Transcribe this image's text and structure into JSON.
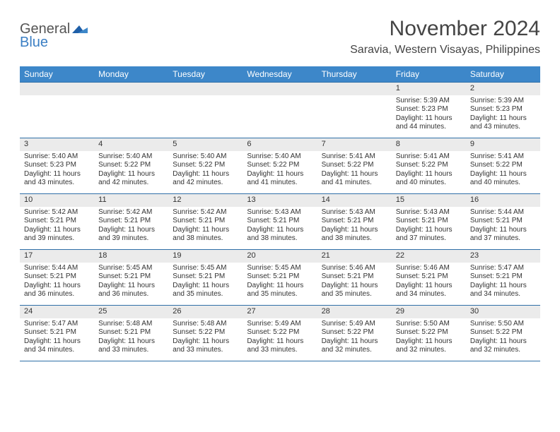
{
  "logo": {
    "word1": "General",
    "word2": "Blue"
  },
  "title": "November 2024",
  "location": "Saravia, Western Visayas, Philippines",
  "colors": {
    "header_bg": "#3d87c9",
    "row_divider": "#2f6fa8",
    "daynum_bg": "#ebebeb",
    "text": "#333333",
    "logo_gray": "#555555",
    "logo_blue": "#3b7fc4"
  },
  "fonts": {
    "title_size": 30,
    "location_size": 16,
    "dow_size": 12,
    "cell_size": 10
  },
  "days_of_week": [
    "Sunday",
    "Monday",
    "Tuesday",
    "Wednesday",
    "Thursday",
    "Friday",
    "Saturday"
  ],
  "weeks": [
    [
      {
        "n": "",
        "sunrise": "",
        "sunset": "",
        "daylight1": "",
        "daylight2": ""
      },
      {
        "n": "",
        "sunrise": "",
        "sunset": "",
        "daylight1": "",
        "daylight2": ""
      },
      {
        "n": "",
        "sunrise": "",
        "sunset": "",
        "daylight1": "",
        "daylight2": ""
      },
      {
        "n": "",
        "sunrise": "",
        "sunset": "",
        "daylight1": "",
        "daylight2": ""
      },
      {
        "n": "",
        "sunrise": "",
        "sunset": "",
        "daylight1": "",
        "daylight2": ""
      },
      {
        "n": "1",
        "sunrise": "Sunrise: 5:39 AM",
        "sunset": "Sunset: 5:23 PM",
        "daylight1": "Daylight: 11 hours",
        "daylight2": "and 44 minutes."
      },
      {
        "n": "2",
        "sunrise": "Sunrise: 5:39 AM",
        "sunset": "Sunset: 5:23 PM",
        "daylight1": "Daylight: 11 hours",
        "daylight2": "and 43 minutes."
      }
    ],
    [
      {
        "n": "3",
        "sunrise": "Sunrise: 5:40 AM",
        "sunset": "Sunset: 5:23 PM",
        "daylight1": "Daylight: 11 hours",
        "daylight2": "and 43 minutes."
      },
      {
        "n": "4",
        "sunrise": "Sunrise: 5:40 AM",
        "sunset": "Sunset: 5:22 PM",
        "daylight1": "Daylight: 11 hours",
        "daylight2": "and 42 minutes."
      },
      {
        "n": "5",
        "sunrise": "Sunrise: 5:40 AM",
        "sunset": "Sunset: 5:22 PM",
        "daylight1": "Daylight: 11 hours",
        "daylight2": "and 42 minutes."
      },
      {
        "n": "6",
        "sunrise": "Sunrise: 5:40 AM",
        "sunset": "Sunset: 5:22 PM",
        "daylight1": "Daylight: 11 hours",
        "daylight2": "and 41 minutes."
      },
      {
        "n": "7",
        "sunrise": "Sunrise: 5:41 AM",
        "sunset": "Sunset: 5:22 PM",
        "daylight1": "Daylight: 11 hours",
        "daylight2": "and 41 minutes."
      },
      {
        "n": "8",
        "sunrise": "Sunrise: 5:41 AM",
        "sunset": "Sunset: 5:22 PM",
        "daylight1": "Daylight: 11 hours",
        "daylight2": "and 40 minutes."
      },
      {
        "n": "9",
        "sunrise": "Sunrise: 5:41 AM",
        "sunset": "Sunset: 5:22 PM",
        "daylight1": "Daylight: 11 hours",
        "daylight2": "and 40 minutes."
      }
    ],
    [
      {
        "n": "10",
        "sunrise": "Sunrise: 5:42 AM",
        "sunset": "Sunset: 5:21 PM",
        "daylight1": "Daylight: 11 hours",
        "daylight2": "and 39 minutes."
      },
      {
        "n": "11",
        "sunrise": "Sunrise: 5:42 AM",
        "sunset": "Sunset: 5:21 PM",
        "daylight1": "Daylight: 11 hours",
        "daylight2": "and 39 minutes."
      },
      {
        "n": "12",
        "sunrise": "Sunrise: 5:42 AM",
        "sunset": "Sunset: 5:21 PM",
        "daylight1": "Daylight: 11 hours",
        "daylight2": "and 38 minutes."
      },
      {
        "n": "13",
        "sunrise": "Sunrise: 5:43 AM",
        "sunset": "Sunset: 5:21 PM",
        "daylight1": "Daylight: 11 hours",
        "daylight2": "and 38 minutes."
      },
      {
        "n": "14",
        "sunrise": "Sunrise: 5:43 AM",
        "sunset": "Sunset: 5:21 PM",
        "daylight1": "Daylight: 11 hours",
        "daylight2": "and 38 minutes."
      },
      {
        "n": "15",
        "sunrise": "Sunrise: 5:43 AM",
        "sunset": "Sunset: 5:21 PM",
        "daylight1": "Daylight: 11 hours",
        "daylight2": "and 37 minutes."
      },
      {
        "n": "16",
        "sunrise": "Sunrise: 5:44 AM",
        "sunset": "Sunset: 5:21 PM",
        "daylight1": "Daylight: 11 hours",
        "daylight2": "and 37 minutes."
      }
    ],
    [
      {
        "n": "17",
        "sunrise": "Sunrise: 5:44 AM",
        "sunset": "Sunset: 5:21 PM",
        "daylight1": "Daylight: 11 hours",
        "daylight2": "and 36 minutes."
      },
      {
        "n": "18",
        "sunrise": "Sunrise: 5:45 AM",
        "sunset": "Sunset: 5:21 PM",
        "daylight1": "Daylight: 11 hours",
        "daylight2": "and 36 minutes."
      },
      {
        "n": "19",
        "sunrise": "Sunrise: 5:45 AM",
        "sunset": "Sunset: 5:21 PM",
        "daylight1": "Daylight: 11 hours",
        "daylight2": "and 35 minutes."
      },
      {
        "n": "20",
        "sunrise": "Sunrise: 5:45 AM",
        "sunset": "Sunset: 5:21 PM",
        "daylight1": "Daylight: 11 hours",
        "daylight2": "and 35 minutes."
      },
      {
        "n": "21",
        "sunrise": "Sunrise: 5:46 AM",
        "sunset": "Sunset: 5:21 PM",
        "daylight1": "Daylight: 11 hours",
        "daylight2": "and 35 minutes."
      },
      {
        "n": "22",
        "sunrise": "Sunrise: 5:46 AM",
        "sunset": "Sunset: 5:21 PM",
        "daylight1": "Daylight: 11 hours",
        "daylight2": "and 34 minutes."
      },
      {
        "n": "23",
        "sunrise": "Sunrise: 5:47 AM",
        "sunset": "Sunset: 5:21 PM",
        "daylight1": "Daylight: 11 hours",
        "daylight2": "and 34 minutes."
      }
    ],
    [
      {
        "n": "24",
        "sunrise": "Sunrise: 5:47 AM",
        "sunset": "Sunset: 5:21 PM",
        "daylight1": "Daylight: 11 hours",
        "daylight2": "and 34 minutes."
      },
      {
        "n": "25",
        "sunrise": "Sunrise: 5:48 AM",
        "sunset": "Sunset: 5:21 PM",
        "daylight1": "Daylight: 11 hours",
        "daylight2": "and 33 minutes."
      },
      {
        "n": "26",
        "sunrise": "Sunrise: 5:48 AM",
        "sunset": "Sunset: 5:22 PM",
        "daylight1": "Daylight: 11 hours",
        "daylight2": "and 33 minutes."
      },
      {
        "n": "27",
        "sunrise": "Sunrise: 5:49 AM",
        "sunset": "Sunset: 5:22 PM",
        "daylight1": "Daylight: 11 hours",
        "daylight2": "and 33 minutes."
      },
      {
        "n": "28",
        "sunrise": "Sunrise: 5:49 AM",
        "sunset": "Sunset: 5:22 PM",
        "daylight1": "Daylight: 11 hours",
        "daylight2": "and 32 minutes."
      },
      {
        "n": "29",
        "sunrise": "Sunrise: 5:50 AM",
        "sunset": "Sunset: 5:22 PM",
        "daylight1": "Daylight: 11 hours",
        "daylight2": "and 32 minutes."
      },
      {
        "n": "30",
        "sunrise": "Sunrise: 5:50 AM",
        "sunset": "Sunset: 5:22 PM",
        "daylight1": "Daylight: 11 hours",
        "daylight2": "and 32 minutes."
      }
    ]
  ]
}
